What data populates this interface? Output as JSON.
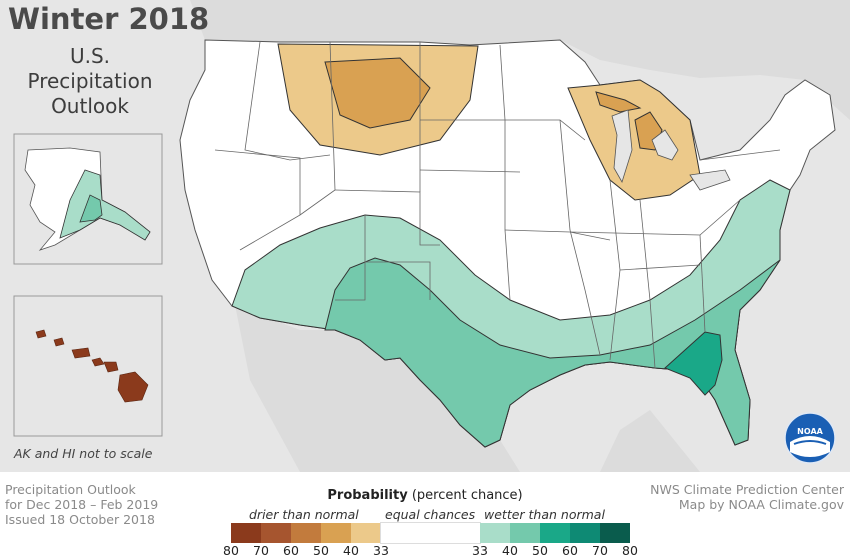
{
  "header": {
    "title": "Winter 2018",
    "subtitle_lines": [
      "U.S.",
      "Precipitation",
      "Outlook"
    ]
  },
  "inset_note": "AK and HI not to scale",
  "footer": {
    "left_lines": [
      "Precipitation Outlook",
      "for Dec 2018 – Feb 2019",
      "Issued 18 October 2018"
    ],
    "right_lines": [
      "NWS Climate Prediction Center",
      "Map by NOAA Climate.gov"
    ]
  },
  "legend": {
    "title_bold": "Probability",
    "title_rest": " (percent chance)",
    "drier_label": "drier than normal",
    "equal_label": "equal chances",
    "wetter_label": "wetter than normal",
    "drier_ticks": [
      "80",
      "70",
      "60",
      "50",
      "40",
      "33"
    ],
    "wetter_ticks": [
      "33",
      "40",
      "50",
      "60",
      "70",
      "80"
    ],
    "drier_colors": [
      "#8b3a1c",
      "#a6552f",
      "#c27b3d",
      "#d9a152",
      "#ecc98a"
    ],
    "equal_color": "#ffffff",
    "wetter_colors": [
      "#a9ddc9",
      "#74c9ac",
      "#1aa888",
      "#0e8a74",
      "#0a5c4d"
    ]
  },
  "logo": {
    "icon": "noaa-logo-icon",
    "text": "NOAA"
  },
  "colors": {
    "background": "#e6e6e6",
    "land": "#ffffff",
    "borders": "#555555",
    "hawaii": "#8b3a1c"
  }
}
